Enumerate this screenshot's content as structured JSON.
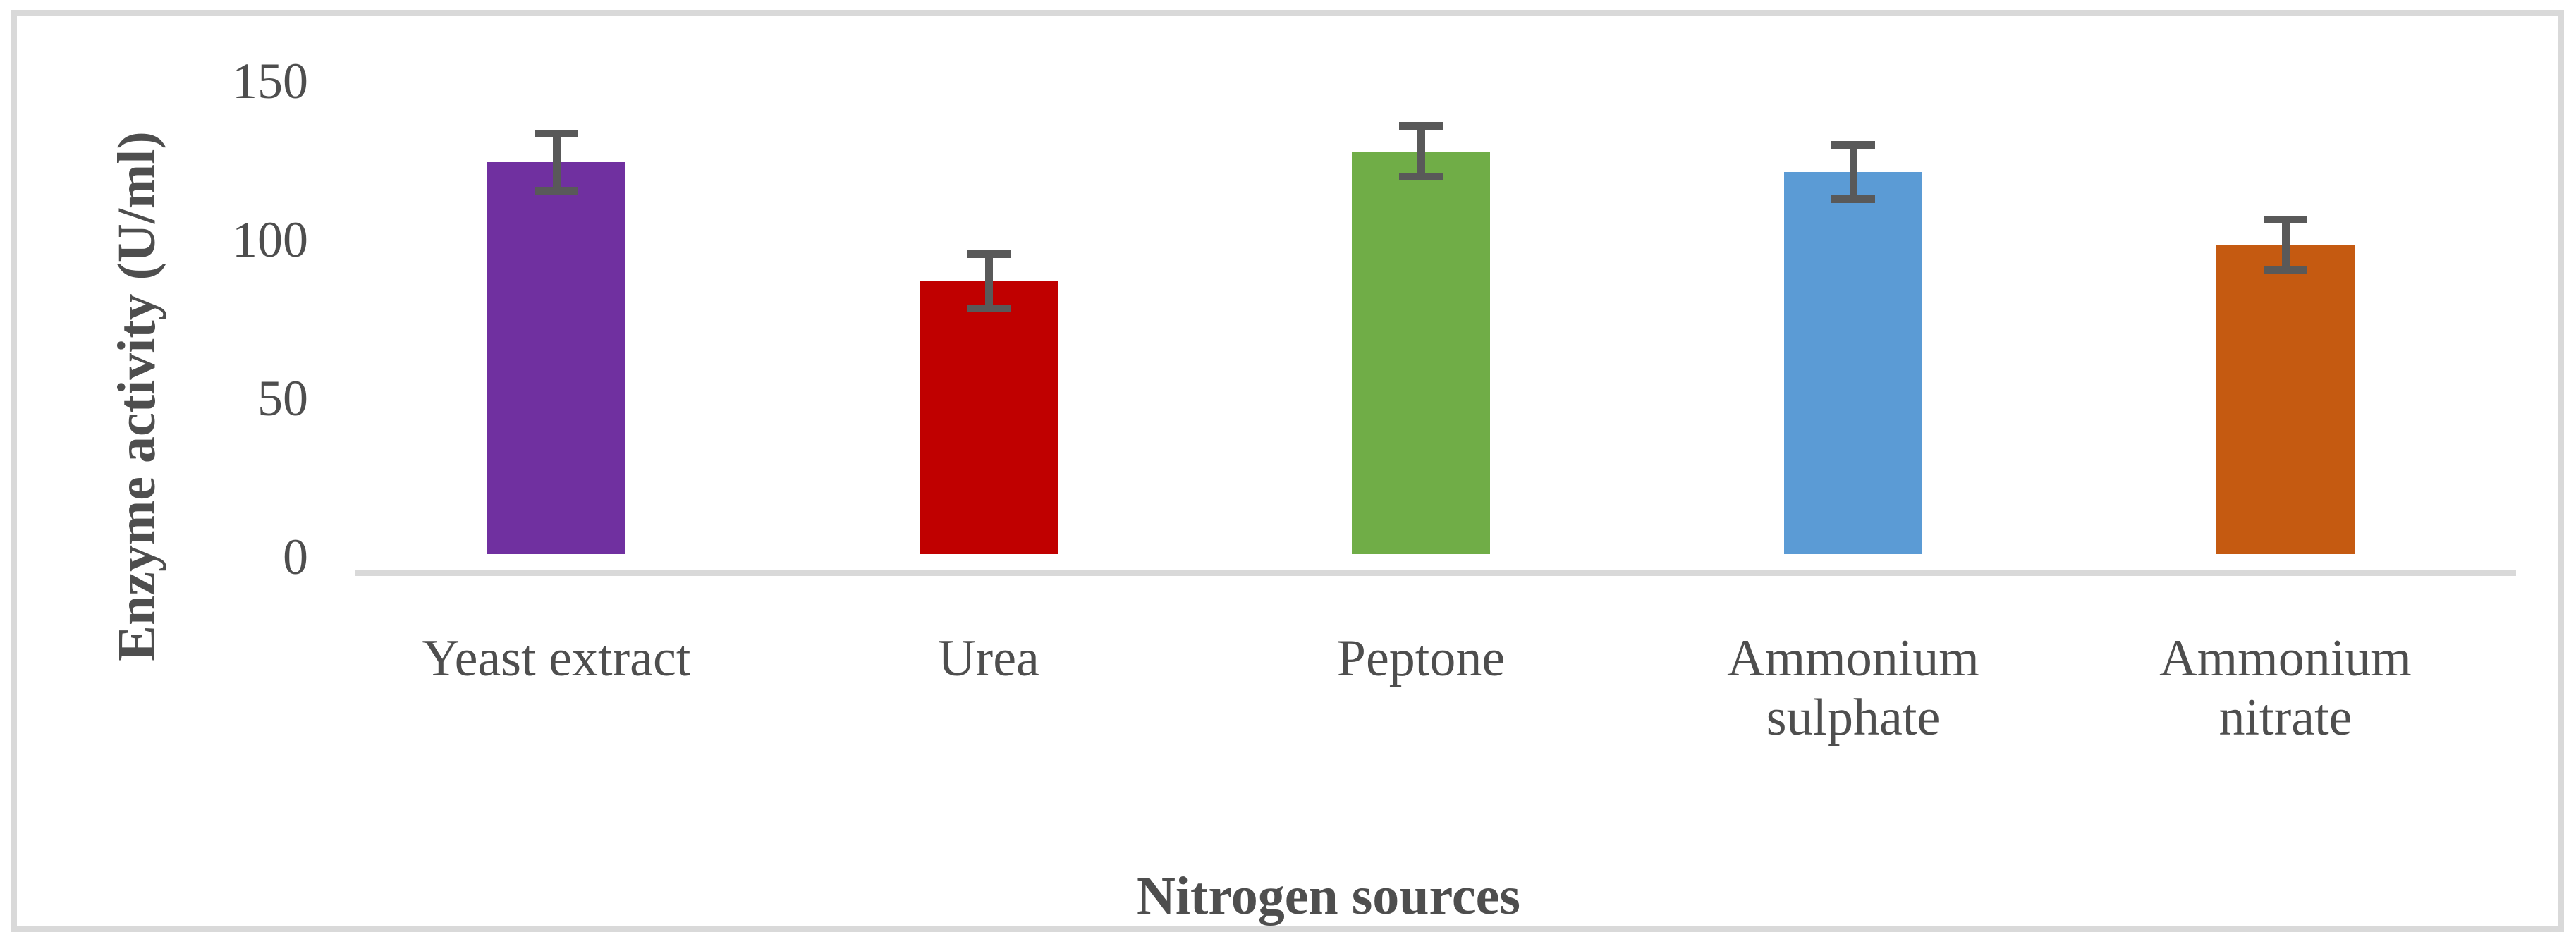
{
  "chart_data": {
    "type": "bar",
    "title": "",
    "xlabel": "Nitrogen sources",
    "ylabel": "Enzyme activity (U/ml)",
    "categories": [
      "Yeast extract",
      "Urea",
      "Peptone",
      "Ammonium\nsulphate",
      "Ammonium\nnitrate"
    ],
    "values": [
      123.5,
      86,
      127,
      120.5,
      97.5
    ],
    "errors": [
      9,
      8.5,
      8,
      8.5,
      8
    ],
    "bar_colors": [
      "#7030A0",
      "#C00000",
      "#70AD47",
      "#5B9BD5",
      "#C55A11"
    ],
    "yticks": [
      0,
      50,
      100,
      150
    ],
    "ylim": [
      0,
      150
    ],
    "grid": false,
    "legend": false,
    "colors": {
      "error_bar": "#595959",
      "axis_line": "#D9D9D9",
      "frame_border": "#D9D9D9",
      "text": "#4E4E4E",
      "background": "#ffffff"
    }
  }
}
